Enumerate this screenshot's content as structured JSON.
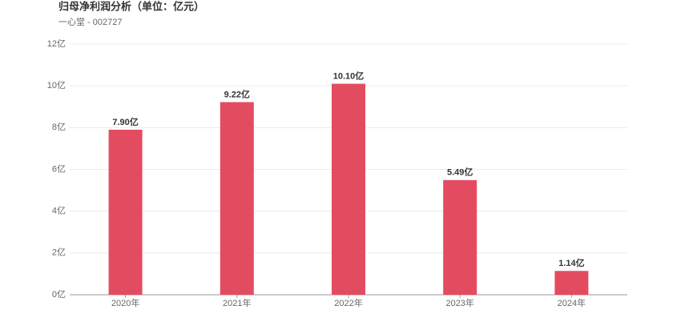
{
  "chart_data": {
    "type": "bar",
    "title": "归母净利润分析（单位：亿元）",
    "subtitle": "一心堂 - 002727",
    "categories": [
      "2020年",
      "2021年",
      "2022年",
      "2023年",
      "2024年"
    ],
    "values": [
      7.9,
      9.22,
      10.1,
      5.49,
      1.14
    ],
    "value_labels": [
      "7.90亿",
      "9.22亿",
      "10.10亿",
      "5.49亿",
      "1.14亿"
    ],
    "color": "#e34c60",
    "ylim": [
      0,
      12
    ],
    "yticks": [
      {
        "value": 0,
        "label": "0亿"
      },
      {
        "value": 2,
        "label": "2亿"
      },
      {
        "value": 4,
        "label": "4亿"
      },
      {
        "value": 6,
        "label": "6亿"
      },
      {
        "value": 8,
        "label": "8亿"
      },
      {
        "value": 10,
        "label": "10亿"
      },
      {
        "value": 12,
        "label": "12亿"
      }
    ],
    "grid": true
  }
}
